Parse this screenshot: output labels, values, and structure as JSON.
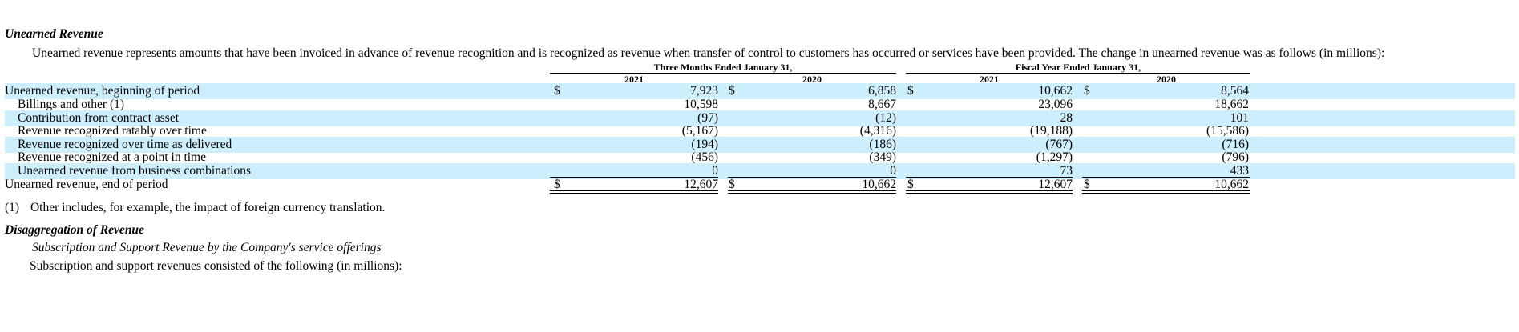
{
  "section1": {
    "heading": "Unearned Revenue",
    "intro": "Unearned revenue represents amounts that have been invoiced in advance of revenue recognition and is recognized as revenue when transfer of control to customers has occurred or services have been provided. The change in unearned revenue was as follows (in millions):"
  },
  "table": {
    "groups": [
      "Three Months Ended January 31,",
      "Fiscal Year Ended January 31,"
    ],
    "years": [
      "2021",
      "2020",
      "2021",
      "2020"
    ],
    "currency_symbol": "$",
    "rows": [
      {
        "label": "Unearned revenue, beginning of period",
        "values": [
          "7,923",
          "6,858",
          "10,662",
          "8,564"
        ]
      },
      {
        "label": "Billings and other (1)",
        "values": [
          "10,598",
          "8,667",
          "23,096",
          "18,662"
        ]
      },
      {
        "label": "Contribution from contract asset",
        "values": [
          "(97)",
          "(12)",
          "28",
          "101"
        ]
      },
      {
        "label": "Revenue recognized ratably over time",
        "values": [
          "(5,167)",
          "(4,316)",
          "(19,188)",
          "(15,586)"
        ]
      },
      {
        "label": "Revenue recognized over time as delivered",
        "values": [
          "(194)",
          "(186)",
          "(767)",
          "(716)"
        ]
      },
      {
        "label": "Revenue recognized at a point in time",
        "values": [
          "(456)",
          "(349)",
          "(1,297)",
          "(796)"
        ]
      },
      {
        "label": "Unearned revenue from business combinations",
        "values": [
          "0",
          "0",
          "73",
          "433"
        ]
      },
      {
        "label": "Unearned revenue, end of period",
        "values": [
          "12,607",
          "10,662",
          "12,607",
          "10,662"
        ]
      }
    ]
  },
  "footnote": {
    "marker": "(1)",
    "text": "Other includes, for example, the impact of foreign currency translation."
  },
  "section2": {
    "heading": "Disaggregation of Revenue",
    "subheading": "Subscription and Support Revenue by the Company's service offerings",
    "intro": "Subscription and support revenues consisted of the following (in millions):"
  }
}
